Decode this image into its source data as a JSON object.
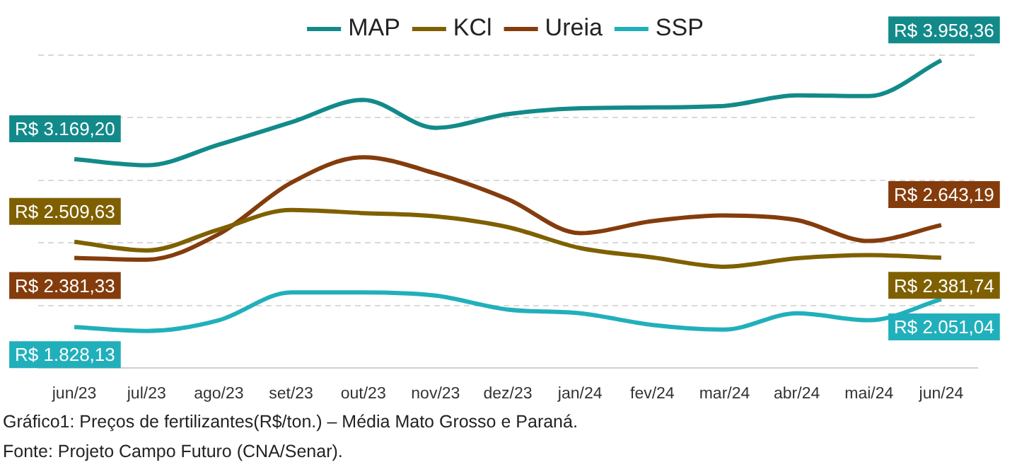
{
  "chart_data": {
    "type": "line",
    "categories": [
      "jun/23",
      "jul/23",
      "ago/23",
      "set/23",
      "out/23",
      "nov/23",
      "dez/23",
      "jan/24",
      "fev/24",
      "mar/24",
      "abr/24",
      "mai/24",
      "jun/24"
    ],
    "series": [
      {
        "name": "MAP",
        "color": "#138a8a",
        "values": [
          3169.2,
          3121,
          3286,
          3464,
          3643,
          3420,
          3530,
          3576,
          3583,
          3595,
          3680,
          3673,
          3958.36
        ],
        "value_labels": [
          "R$ 3.169,20",
          null,
          null,
          null,
          null,
          null,
          null,
          null,
          null,
          null,
          null,
          null,
          "R$ 3.958,36"
        ]
      },
      {
        "name": "KCl",
        "color": "#7f6000",
        "values": [
          2509.63,
          2441,
          2608,
          2764,
          2739,
          2713,
          2627,
          2460,
          2385,
          2311,
          2378,
          2404,
          2381.74
        ],
        "value_labels": [
          "R$ 2.509,63",
          null,
          null,
          null,
          null,
          null,
          null,
          null,
          null,
          null,
          null,
          null,
          "R$ 2.381,74"
        ]
      },
      {
        "name": "Ureia",
        "color": "#843c0c",
        "values": [
          2381.33,
          2367,
          2571,
          2981,
          3185,
          3055,
          2850,
          2579,
          2675,
          2720,
          2683,
          2516,
          2643.19
        ],
        "value_labels": [
          "R$ 2.381,33",
          null,
          null,
          null,
          null,
          null,
          null,
          null,
          null,
          null,
          null,
          null,
          "R$ 2.643,19"
        ]
      },
      {
        "name": "SSP",
        "color": "#21b0bb",
        "values": [
          1828.13,
          1798,
          1883,
          2106,
          2106,
          2080,
          1969,
          1939,
          1846,
          1809,
          1939,
          1883,
          2051.04
        ],
        "value_labels": [
          "R$ 1.828,13",
          null,
          null,
          null,
          null,
          null,
          null,
          null,
          null,
          null,
          null,
          null,
          "R$ 2.051,04"
        ]
      }
    ],
    "ylim": [
      1500,
      4000
    ],
    "yticks": [
      {
        "value": 1500,
        "label": null
      },
      {
        "value": 2000,
        "label": null
      },
      {
        "value": 2500,
        "label": null
      },
      {
        "value": 3000,
        "label": null
      },
      {
        "value": 3500,
        "label": null
      },
      {
        "value": 4000,
        "label": null
      }
    ],
    "tick_labels": "x",
    "grid": "y",
    "legend": "top",
    "marker": "none",
    "line_style": "solid",
    "annotations": [
      "Gráfico1: Preços de fertilizantes(R$/ton.) – Média Mato Grosso e Paraná.",
      "Fonte: Projeto Campo Futuro (CNA/Senar)."
    ]
  }
}
